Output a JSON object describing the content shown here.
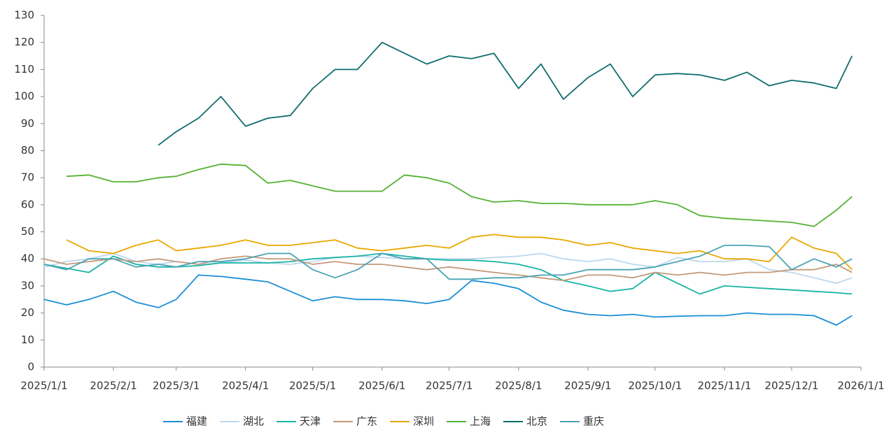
{
  "chart_data": {
    "type": "line",
    "x": [
      "2025/1/1",
      "2025/1/11",
      "2025/1/21",
      "2025/2/1",
      "2025/2/11",
      "2025/2/21",
      "2025/3/1",
      "2025/3/11",
      "2025/3/21",
      "2025/4/1",
      "2025/4/11",
      "2025/4/21",
      "2025/5/1",
      "2025/5/11",
      "2025/5/21",
      "2025/6/1",
      "2025/6/11",
      "2025/6/21",
      "2025/7/1",
      "2025/7/11",
      "2025/7/21",
      "2025/8/1",
      "2025/8/11",
      "2025/8/21",
      "2025/9/1",
      "2025/9/11",
      "2025/9/21",
      "2025/10/1",
      "2025/10/11",
      "2025/10/21",
      "2025/11/1",
      "2025/11/11",
      "2025/11/21",
      "2025/12/1",
      "2025/12/11",
      "2025/12/21",
      "2025/12/28"
    ],
    "series": [
      {
        "name": "福建",
        "color": "#1a8fd6",
        "values": [
          25,
          23,
          25,
          28,
          24,
          22,
          25,
          34,
          33.5,
          32.5,
          31.5,
          28,
          24.5,
          26,
          25,
          25,
          24.5,
          23.5,
          25,
          32,
          31,
          29,
          24,
          21,
          19.5,
          19,
          19.5,
          18.5,
          18.8,
          19,
          19,
          20,
          19.5,
          19.5,
          19,
          15.5,
          19
        ]
      },
      {
        "name": "湖北",
        "color": "#bdd7ee",
        "values": [
          37,
          39,
          40,
          42,
          39,
          38,
          39,
          38,
          38.5,
          39.5,
          38.5,
          38,
          39,
          40.5,
          41,
          40.5,
          40,
          40,
          40,
          40,
          40.5,
          41,
          42,
          40,
          39,
          40,
          38,
          37,
          40.5,
          39,
          39,
          40,
          36,
          35,
          33,
          31,
          33
        ]
      },
      {
        "name": "天津",
        "color": "#19b3a4",
        "values": [
          38,
          36.5,
          35,
          41,
          38,
          37,
          37,
          37.5,
          38.5,
          38.5,
          38.5,
          39,
          40,
          40.5,
          41,
          42,
          41,
          40,
          39.5,
          39.5,
          39,
          38,
          36,
          32,
          30,
          28,
          29,
          35,
          31,
          27,
          30,
          29.5,
          29,
          28.5,
          28,
          27.5,
          27
        ]
      },
      {
        "name": "广东",
        "color": "#c49a7a",
        "values": [
          40,
          38,
          39,
          40,
          39,
          40,
          39,
          38,
          40,
          41,
          40,
          40,
          38,
          39,
          38,
          38,
          37,
          36,
          37,
          36,
          35,
          34,
          33,
          32,
          34,
          34,
          33,
          35,
          34,
          35,
          34,
          35,
          35,
          36,
          36,
          38,
          35
        ]
      },
      {
        "name": "深圳",
        "color": "#e8a800",
        "values": [
          null,
          47,
          43,
          42,
          45,
          47,
          43,
          44,
          45,
          47,
          45,
          45,
          46,
          47,
          44,
          43,
          44,
          45,
          44,
          48,
          49,
          48,
          48,
          47,
          45,
          46,
          44,
          43,
          42,
          43,
          40,
          40,
          39,
          48,
          44,
          42,
          36
        ]
      },
      {
        "name": "上海",
        "color": "#55b234",
        "values": [
          null,
          70.5,
          71,
          68.5,
          68.5,
          70,
          70.5,
          73,
          75,
          74.5,
          68,
          69,
          67,
          65,
          65,
          65,
          71,
          70,
          68,
          63,
          61,
          61.5,
          60.5,
          60.5,
          60,
          60,
          60,
          61.5,
          60,
          56,
          55,
          54.5,
          54,
          53.5,
          52,
          58,
          63
        ]
      },
      {
        "name": "北京",
        "color": "#0f6d6c",
        "values": [
          null,
          null,
          null,
          null,
          null,
          82,
          87,
          92,
          100,
          89,
          92,
          93,
          103,
          110,
          110,
          120,
          116,
          112,
          115,
          114,
          116,
          103,
          112,
          99,
          107,
          112,
          100,
          108,
          108.5,
          108,
          106,
          109,
          104,
          106,
          105,
          103,
          115
        ]
      },
      {
        "name": "重庆",
        "color": "#4aa3b5",
        "values": [
          38,
          36,
          40,
          40,
          37,
          38,
          37,
          39,
          39,
          40,
          42,
          42,
          36,
          33,
          36,
          42,
          40,
          40,
          32.5,
          32.5,
          33,
          33,
          34,
          34,
          36,
          36,
          36,
          37,
          39,
          41,
          45,
          45,
          44.5,
          36,
          40,
          37,
          40
        ]
      }
    ],
    "xlim": [
      "2025/1/1",
      "2026/1/1"
    ],
    "xticks": [
      "2025/1/1",
      "2025/2/1",
      "2025/3/1",
      "2025/4/1",
      "2025/5/1",
      "2025/6/1",
      "2025/7/1",
      "2025/8/1",
      "2025/9/1",
      "2025/10/1",
      "2025/11/1",
      "2025/12/1",
      "2026/1/1"
    ],
    "ylim": [
      0,
      130
    ],
    "yticks": [
      0,
      10,
      20,
      30,
      40,
      50,
      60,
      70,
      80,
      90,
      100,
      110,
      120,
      130
    ]
  }
}
